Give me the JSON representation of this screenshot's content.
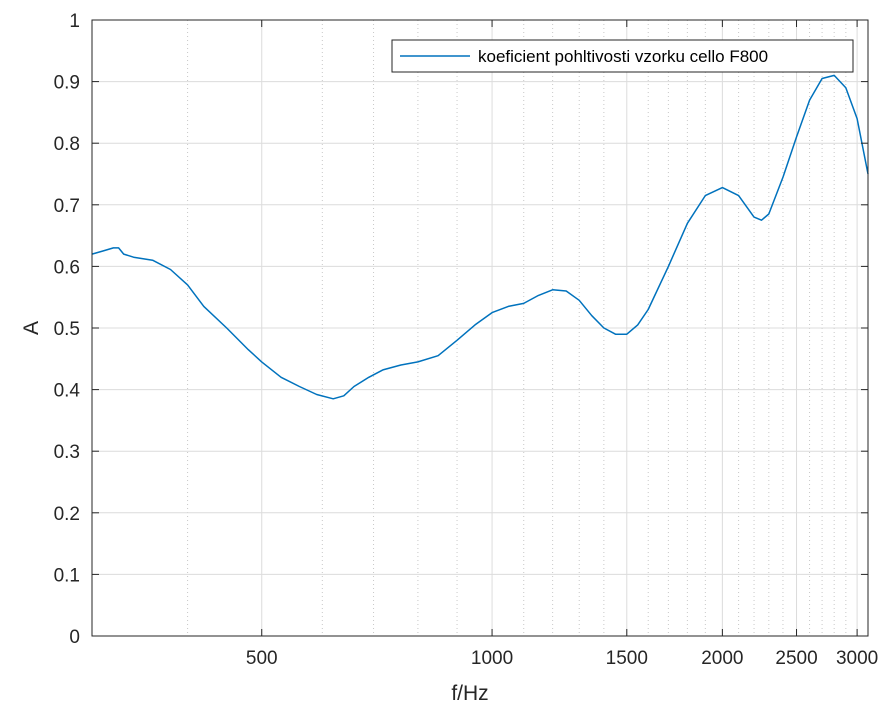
{
  "chart_data": {
    "type": "line",
    "title": "",
    "xlabel": "f/Hz",
    "ylabel": "A",
    "x_scale": "log",
    "xlim": [
      300,
      3100
    ],
    "ylim": [
      0,
      1
    ],
    "x_ticks": [
      500,
      1000,
      1500,
      2000,
      2500,
      3000
    ],
    "x_tick_labels": [
      "500",
      "1000",
      "1500",
      "2000",
      "2500",
      "3000"
    ],
    "y_ticks": [
      0,
      0.1,
      0.2,
      0.3,
      0.4,
      0.5,
      0.6,
      0.7,
      0.8,
      0.9,
      1
    ],
    "y_tick_labels": [
      "0",
      "0.1",
      "0.2",
      "0.3",
      "0.4",
      "0.5",
      "0.6",
      "0.7",
      "0.8",
      "0.9",
      "1"
    ],
    "grid": true,
    "minor_grid": true,
    "legend_position": "top-right",
    "series": [
      {
        "name": "koeficient pohltivosti vzorku cello F800",
        "color": "#0072BD",
        "x": [
          300,
          310,
          320,
          325,
          330,
          340,
          360,
          380,
          400,
          420,
          450,
          480,
          500,
          530,
          560,
          590,
          620,
          640,
          660,
          690,
          720,
          760,
          800,
          850,
          900,
          950,
          1000,
          1050,
          1100,
          1150,
          1200,
          1250,
          1300,
          1350,
          1400,
          1450,
          1500,
          1550,
          1600,
          1700,
          1800,
          1900,
          2000,
          2100,
          2200,
          2250,
          2300,
          2400,
          2500,
          2600,
          2700,
          2800,
          2900,
          3000,
          3100
        ],
        "y": [
          0.62,
          0.625,
          0.63,
          0.63,
          0.62,
          0.615,
          0.61,
          0.595,
          0.57,
          0.535,
          0.5,
          0.465,
          0.445,
          0.42,
          0.405,
          0.392,
          0.385,
          0.39,
          0.405,
          0.42,
          0.432,
          0.44,
          0.445,
          0.455,
          0.48,
          0.505,
          0.525,
          0.535,
          0.54,
          0.553,
          0.562,
          0.56,
          0.545,
          0.52,
          0.5,
          0.49,
          0.49,
          0.505,
          0.53,
          0.6,
          0.67,
          0.715,
          0.728,
          0.715,
          0.68,
          0.675,
          0.685,
          0.745,
          0.81,
          0.87,
          0.905,
          0.91,
          0.89,
          0.84,
          0.75
        ]
      }
    ]
  }
}
